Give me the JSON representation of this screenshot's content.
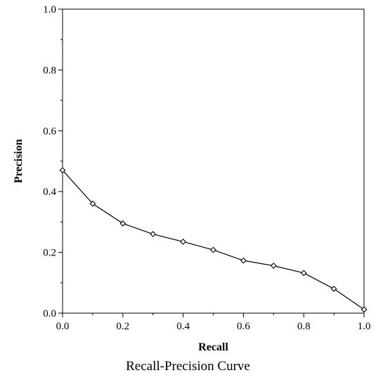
{
  "chart_data": {
    "type": "line",
    "title": "Recall-Precision Curve",
    "xlabel": "Recall",
    "ylabel": "Precision",
    "xlim": [
      0.0,
      1.0
    ],
    "ylim": [
      0.0,
      1.0
    ],
    "x_ticks": [
      "0.0",
      "0.2",
      "0.4",
      "0.6",
      "0.8",
      "1.0"
    ],
    "y_ticks": [
      "0.0",
      "0.2",
      "0.4",
      "0.6",
      "0.8",
      "1.0"
    ],
    "grid": false,
    "marker": "diamond",
    "series": [
      {
        "x": [
          0.0,
          0.1,
          0.2,
          0.3,
          0.4,
          0.5,
          0.6,
          0.7,
          0.8,
          0.9,
          1.0
        ],
        "y": [
          0.47,
          0.36,
          0.295,
          0.26,
          0.235,
          0.208,
          0.173,
          0.156,
          0.132,
          0.08,
          0.012
        ]
      }
    ]
  }
}
